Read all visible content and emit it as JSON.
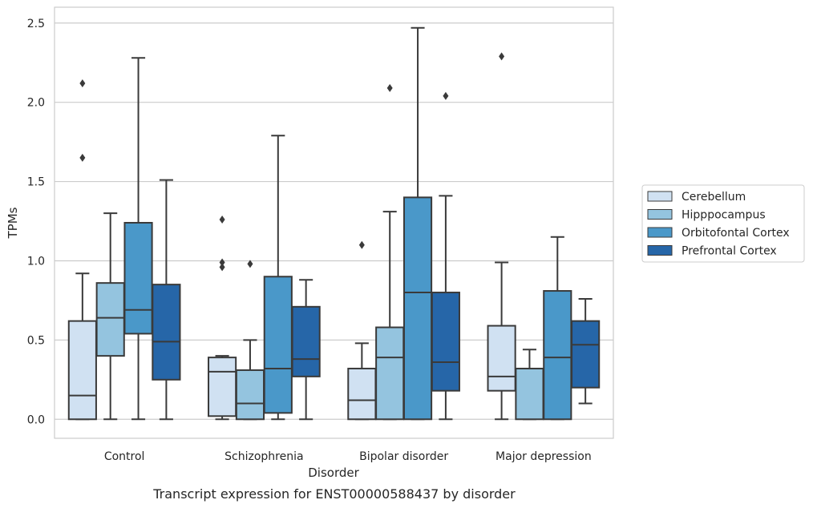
{
  "chart_data": {
    "type": "box",
    "title": "",
    "caption": "Transcript expression for ENST00000588437 by disorder",
    "xlabel": "Disorder",
    "ylabel": "TPMs",
    "ylim": [
      -0.12,
      2.6
    ],
    "yticks": [
      "0.0",
      "0.5",
      "1.0",
      "1.5",
      "2.0",
      "2.5"
    ],
    "grid": true,
    "legend_position": "right",
    "categories": [
      "Control",
      "Schizophrenia",
      "Bipolar disorder",
      "Major depression"
    ],
    "series": [
      {
        "name": "Cerebellum",
        "color": "#d0e1f2",
        "boxes": [
          {
            "whislo": 0.0,
            "q1": 0.0,
            "med": 0.15,
            "q3": 0.62,
            "whishi": 0.92,
            "fliers": [
              1.65,
              2.12
            ]
          },
          {
            "whislo": 0.0,
            "q1": 0.02,
            "med": 0.3,
            "q3": 0.39,
            "whishi": 0.4,
            "fliers": [
              0.96,
              0.99,
              1.26
            ]
          },
          {
            "whislo": 0.0,
            "q1": 0.0,
            "med": 0.12,
            "q3": 0.32,
            "whishi": 0.48,
            "fliers": [
              1.1
            ]
          },
          {
            "whislo": 0.0,
            "q1": 0.18,
            "med": 0.27,
            "q3": 0.59,
            "whishi": 0.99,
            "fliers": [
              2.29
            ]
          }
        ]
      },
      {
        "name": "Hipppocampus",
        "color": "#94c4df",
        "boxes": [
          {
            "whislo": 0.0,
            "q1": 0.4,
            "med": 0.64,
            "q3": 0.86,
            "whishi": 1.3,
            "fliers": []
          },
          {
            "whislo": 0.0,
            "q1": 0.0,
            "med": 0.1,
            "q3": 0.31,
            "whishi": 0.5,
            "fliers": [
              0.98
            ]
          },
          {
            "whislo": 0.0,
            "q1": 0.0,
            "med": 0.39,
            "q3": 0.58,
            "whishi": 1.31,
            "fliers": [
              2.09
            ]
          },
          {
            "whislo": 0.0,
            "q1": 0.0,
            "med": 0.32,
            "q3": 0.32,
            "whishi": 0.44,
            "fliers": []
          }
        ]
      },
      {
        "name": "Orbitofontal Cortex",
        "color": "#4a98c9",
        "boxes": [
          {
            "whislo": 0.0,
            "q1": 0.54,
            "med": 0.69,
            "q3": 1.24,
            "whishi": 2.28,
            "fliers": []
          },
          {
            "whislo": 0.0,
            "q1": 0.04,
            "med": 0.32,
            "q3": 0.9,
            "whishi": 1.79,
            "fliers": []
          },
          {
            "whislo": 0.0,
            "q1": 0.0,
            "med": 0.8,
            "q3": 1.4,
            "whishi": 2.47,
            "fliers": []
          },
          {
            "whislo": 0.0,
            "q1": 0.0,
            "med": 0.39,
            "q3": 0.81,
            "whishi": 1.15,
            "fliers": []
          }
        ]
      },
      {
        "name": "Prefrontal Cortex",
        "color": "#2666a8",
        "boxes": [
          {
            "whislo": 0.0,
            "q1": 0.25,
            "med": 0.49,
            "q3": 0.85,
            "whishi": 1.51,
            "fliers": []
          },
          {
            "whislo": 0.0,
            "q1": 0.27,
            "med": 0.38,
            "q3": 0.71,
            "whishi": 0.88,
            "fliers": []
          },
          {
            "whislo": 0.0,
            "q1": 0.18,
            "med": 0.36,
            "q3": 0.8,
            "whishi": 1.41,
            "fliers": [
              2.04
            ]
          },
          {
            "whislo": 0.1,
            "q1": 0.2,
            "med": 0.47,
            "q3": 0.62,
            "whishi": 0.76,
            "fliers": []
          }
        ]
      }
    ]
  }
}
